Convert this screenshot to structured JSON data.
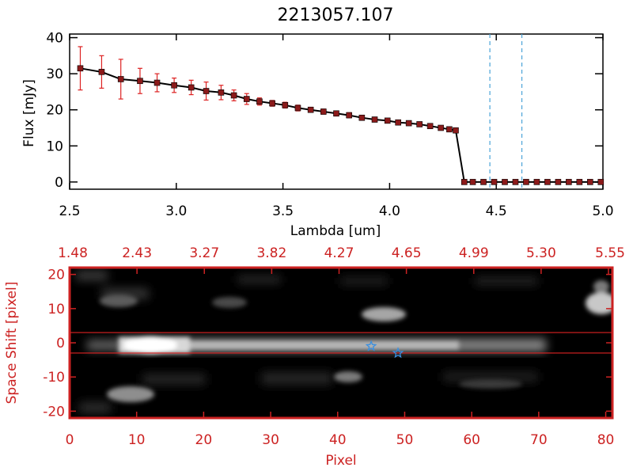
{
  "title": "2213057.107",
  "colors": {
    "axis_black": "#000000",
    "axis_red": "#cc2222",
    "marker": "#8b1a1a",
    "errorbar": "#dd2222",
    "dashed_line": "#4aa3d8",
    "trace_line": "#dd2222",
    "star": "#3a8fe0"
  },
  "chart_data": [
    {
      "type": "line",
      "name": "spectrum",
      "title": "2213057.107",
      "xlabel": "Lambda [um]",
      "ylabel": "Flux [mJy]",
      "xlim": [
        2.5,
        5.0
      ],
      "ylim": [
        -2,
        41
      ],
      "xticks": [
        "2.5",
        "3.0",
        "3.5",
        "4.0",
        "4.5",
        "5.0"
      ],
      "yticks": [
        "0",
        "10",
        "20",
        "30",
        "40"
      ],
      "grid": false,
      "x": [
        2.55,
        2.65,
        2.74,
        2.83,
        2.91,
        2.99,
        3.07,
        3.14,
        3.21,
        3.27,
        3.33,
        3.39,
        3.45,
        3.51,
        3.57,
        3.63,
        3.69,
        3.75,
        3.81,
        3.87,
        3.93,
        3.99,
        4.04,
        4.09,
        4.14,
        4.19,
        4.24,
        4.28,
        4.31,
        4.35,
        4.39,
        4.44,
        4.49,
        4.54,
        4.59,
        4.64,
        4.69,
        4.74,
        4.79,
        4.84,
        4.89,
        4.94,
        4.99
      ],
      "y": [
        31.5,
        30.5,
        28.5,
        28.0,
        27.5,
        26.8,
        26.2,
        25.2,
        24.8,
        24.0,
        23.0,
        22.3,
        21.8,
        21.3,
        20.5,
        20.0,
        19.5,
        19.0,
        18.5,
        17.8,
        17.3,
        17.0,
        16.5,
        16.3,
        16.0,
        15.5,
        15.0,
        14.6,
        14.3,
        0,
        0,
        0,
        0,
        0,
        0,
        0,
        0,
        0,
        0,
        0,
        0,
        0,
        0
      ],
      "yerr": [
        6.0,
        4.5,
        5.5,
        3.5,
        2.5,
        2.0,
        2.0,
        2.5,
        2.0,
        1.5,
        1.5,
        1.0,
        0.8,
        0.8,
        0.8,
        0.7,
        0.7,
        0.7,
        0.7,
        0.6,
        0.6,
        0.6,
        0.6,
        0.6,
        0.6,
        0.6,
        0.6,
        0.6,
        0.6,
        0,
        0,
        0,
        0,
        0,
        0,
        0,
        0,
        0,
        0,
        0,
        0,
        0,
        0
      ],
      "vlines": [
        4.47,
        4.62
      ]
    },
    {
      "type": "heatmap",
      "name": "spectral-image",
      "xlabel": "Pixel",
      "ylabel": "Space Shift [pixel]",
      "xlim": [
        0,
        81
      ],
      "ylim": [
        -22,
        22
      ],
      "xticks": [
        "0",
        "10",
        "20",
        "30",
        "40",
        "50",
        "60",
        "70",
        "80"
      ],
      "yticks": [
        "-20",
        "-10",
        "0",
        "10",
        "20"
      ],
      "top_axis_ticks": [
        "1.48",
        "2.43",
        "3.27",
        "3.82",
        "4.27",
        "4.65",
        "4.99",
        "5.30",
        "5.55"
      ],
      "trace_lines_y": [
        3,
        -3
      ],
      "stars": [
        [
          45,
          -1
        ],
        [
          49,
          -3
        ]
      ]
    }
  ]
}
